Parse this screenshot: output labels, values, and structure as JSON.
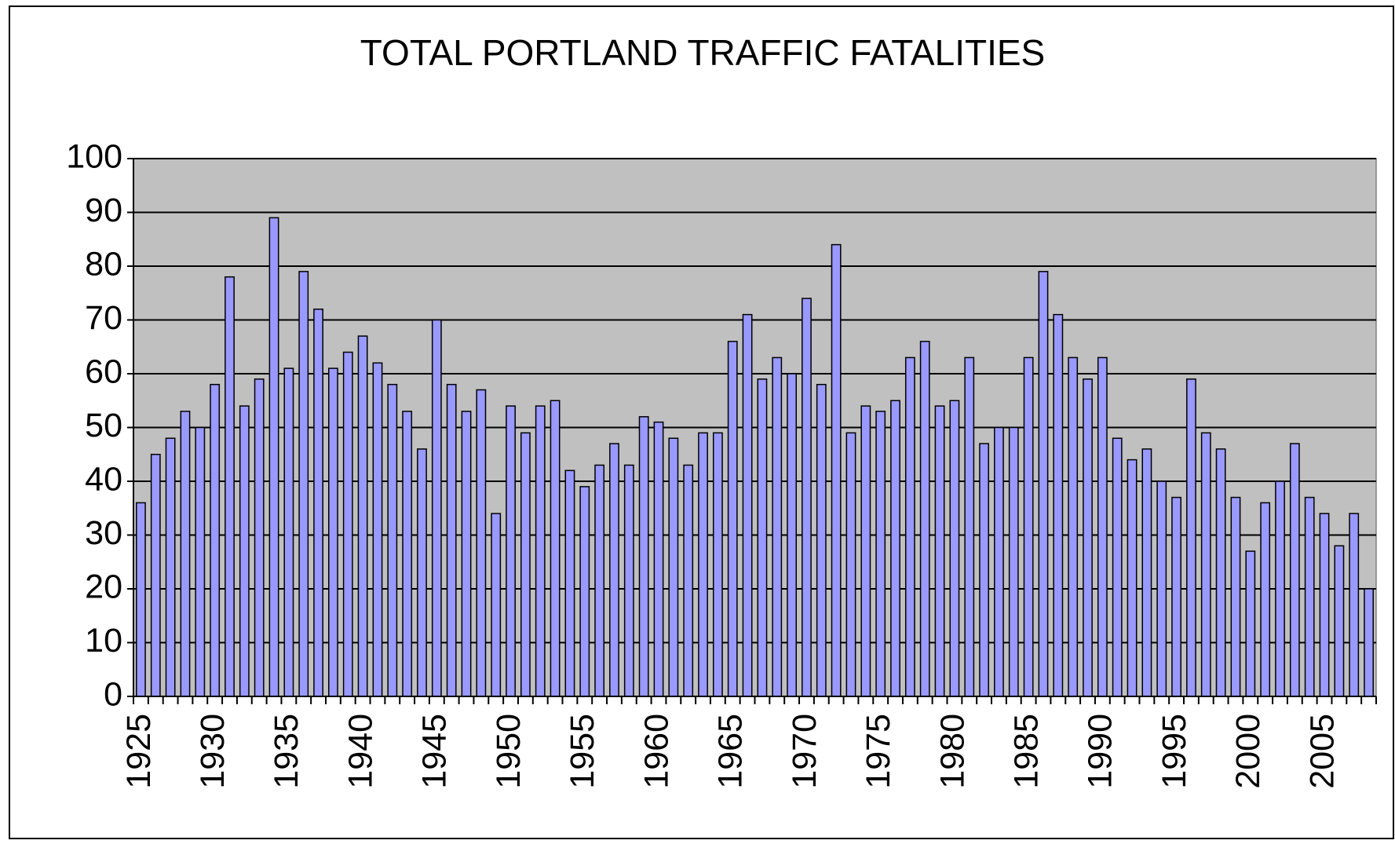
{
  "chart_data": {
    "type": "bar",
    "title": "TOTAL PORTLAND TRAFFIC FATALITIES",
    "categories": [
      "1925",
      null,
      null,
      null,
      null,
      "1930",
      null,
      null,
      null,
      null,
      "1935",
      null,
      null,
      null,
      null,
      "1940",
      null,
      null,
      null,
      null,
      "1945",
      null,
      null,
      null,
      null,
      "1950",
      null,
      null,
      null,
      null,
      "1955",
      null,
      null,
      null,
      null,
      "1960",
      null,
      null,
      null,
      null,
      "1965",
      null,
      null,
      null,
      null,
      "1970",
      null,
      null,
      null,
      null,
      "1975",
      null,
      null,
      null,
      null,
      "1980",
      null,
      null,
      null,
      null,
      "1985",
      null,
      null,
      null,
      null,
      "1990",
      null,
      null,
      null,
      null,
      "1995",
      null,
      null,
      null,
      null,
      "2000",
      null,
      null,
      null,
      null,
      "2005",
      null,
      null,
      null
    ],
    "values": [
      36,
      45,
      48,
      53,
      50,
      58,
      78,
      54,
      59,
      89,
      61,
      79,
      72,
      61,
      64,
      67,
      62,
      58,
      53,
      46,
      70,
      58,
      53,
      57,
      34,
      54,
      49,
      54,
      55,
      42,
      39,
      43,
      47,
      43,
      52,
      51,
      48,
      43,
      49,
      49,
      66,
      71,
      59,
      63,
      60,
      74,
      58,
      84,
      49,
      54,
      53,
      55,
      63,
      66,
      54,
      55,
      63,
      47,
      50,
      50,
      63,
      79,
      71,
      63,
      59,
      63,
      48,
      44,
      46,
      40,
      37,
      59,
      49,
      46,
      37,
      27,
      36,
      40,
      47,
      37,
      34,
      28,
      34,
      20
    ],
    "color": "#9999ff",
    "plot_background": "#c0c0c0",
    "ylim": [
      0,
      100
    ],
    "yticks": [
      0,
      10,
      20,
      30,
      40,
      50,
      60,
      70,
      80,
      90,
      100
    ],
    "grid": true
  }
}
